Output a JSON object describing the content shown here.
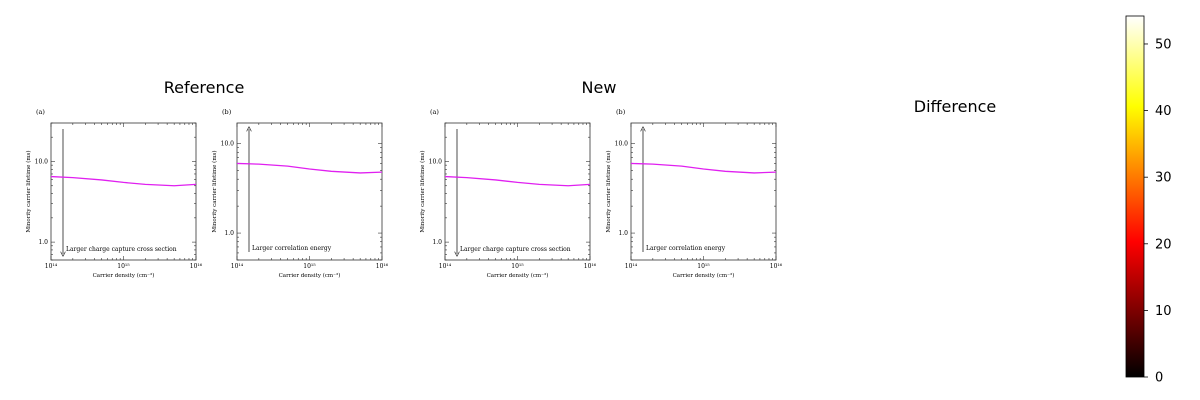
{
  "titles": {
    "reference": "Reference",
    "new": "New",
    "difference": "Difference"
  },
  "subplot": {
    "ylabel": "Minority carrier lifetime (ms)",
    "xlabel": "Carrier density (cm⁻³)",
    "x_ticks": [
      "10¹⁴",
      "10¹⁵",
      "10¹⁶"
    ]
  },
  "colorbar": {
    "ticks": [
      "0",
      "10",
      "20",
      "30",
      "40",
      "50"
    ],
    "range": [
      0,
      54.2
    ],
    "colormap": "hot"
  },
  "colors": {
    "curve": "#e020f0",
    "axis": "#333333"
  },
  "chart_data": [
    {
      "type": "line",
      "panel": "Reference",
      "tag": "(a)",
      "xscale": "log",
      "yscale": "log",
      "xlim": [
        100000000000000.0,
        1e+16
      ],
      "ylim": [
        0.6,
        30
      ],
      "y_ticks": [
        "1.0",
        "10.0"
      ],
      "annotation": "Larger charge capture cross section",
      "arrow": "down",
      "x": [
        100000000000000.0,
        200000000000000.0,
        500000000000000.0,
        1000000000000000.0,
        2000000000000000.0,
        5000000000000000.0,
        1e+16
      ],
      "y": [
        6.5,
        6.3,
        5.9,
        5.5,
        5.2,
        5.0,
        5.2
      ]
    },
    {
      "type": "line",
      "panel": "Reference",
      "tag": "(b)",
      "xscale": "log",
      "yscale": "log",
      "xlim": [
        100000000000000.0,
        1e+16
      ],
      "ylim": [
        0.5,
        17
      ],
      "y_ticks": [
        "1.0",
        "10.0"
      ],
      "annotation": "Larger correlation energy",
      "arrow": "up",
      "x": [
        100000000000000.0,
        200000000000000.0,
        500000000000000.0,
        1000000000000000.0,
        2000000000000000.0,
        5000000000000000.0,
        1e+16
      ],
      "y": [
        6.0,
        5.9,
        5.6,
        5.2,
        4.9,
        4.7,
        4.8
      ]
    },
    {
      "type": "line",
      "panel": "New",
      "tag": "(a)",
      "xscale": "log",
      "yscale": "log",
      "xlim": [
        100000000000000.0,
        1e+16
      ],
      "ylim": [
        0.6,
        30
      ],
      "y_ticks": [
        "1.0",
        "10.0"
      ],
      "annotation": "Larger charge capture cross section",
      "arrow": "down",
      "x": [
        100000000000000.0,
        200000000000000.0,
        500000000000000.0,
        1000000000000000.0,
        2000000000000000.0,
        5000000000000000.0,
        1e+16
      ],
      "y": [
        6.5,
        6.3,
        5.9,
        5.5,
        5.2,
        5.0,
        5.2
      ]
    },
    {
      "type": "line",
      "panel": "New",
      "tag": "(b)",
      "xscale": "log",
      "yscale": "log",
      "xlim": [
        100000000000000.0,
        1e+16
      ],
      "ylim": [
        0.5,
        17
      ],
      "y_ticks": [
        "1.0",
        "10.0"
      ],
      "annotation": "Larger correlation energy",
      "arrow": "up",
      "x": [
        100000000000000.0,
        200000000000000.0,
        500000000000000.0,
        1000000000000000.0,
        2000000000000000.0,
        5000000000000000.0,
        1e+16
      ],
      "y": [
        6.0,
        5.9,
        5.6,
        5.2,
        4.9,
        4.7,
        4.8
      ]
    }
  ]
}
